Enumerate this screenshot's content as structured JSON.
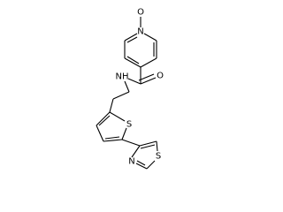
{
  "atoms": [
    {
      "label": "O"
    },
    {
      "label": "N"
    },
    {
      "label": "O"
    },
    {
      "label": "NH"
    },
    {
      "label": "S"
    },
    {
      "label": "N"
    },
    {
      "label": "S"
    }
  ]
}
